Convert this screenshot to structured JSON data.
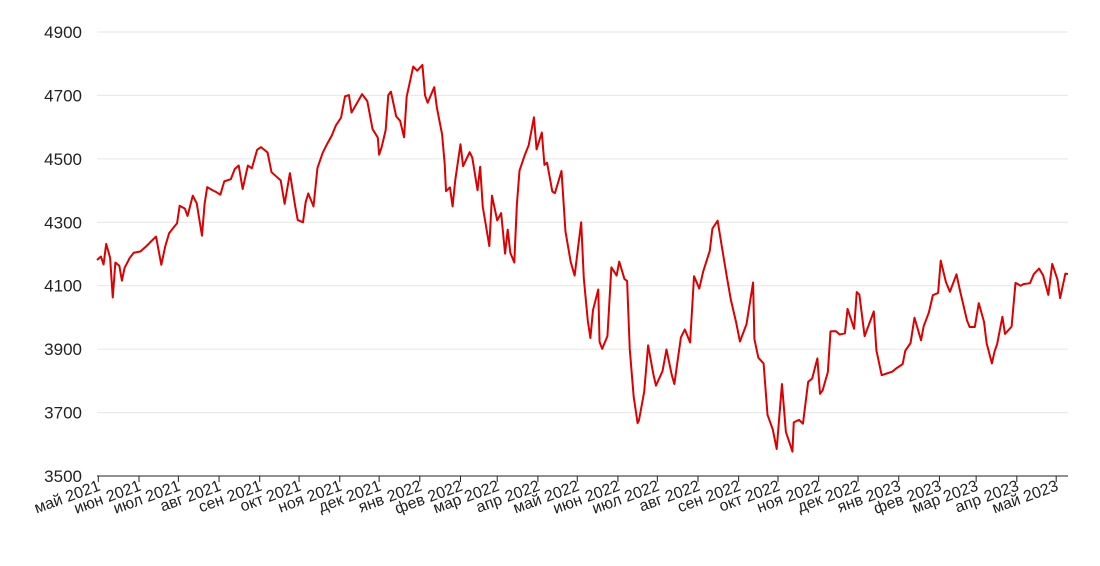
{
  "chart_data": {
    "type": "line",
    "title": "",
    "xlabel": "",
    "ylabel": "",
    "ylim": [
      3500,
      4900
    ],
    "yticks": [
      3500,
      3700,
      3900,
      4100,
      4300,
      4500,
      4700,
      4900
    ],
    "grid": true,
    "line_color": "#dd0000",
    "xticks": [
      {
        "date": "2021-05-01",
        "label": "май 2021"
      },
      {
        "date": "2021-06-01",
        "label": "июн 2021"
      },
      {
        "date": "2021-07-01",
        "label": "июл 2021"
      },
      {
        "date": "2021-08-01",
        "label": "авг 2021"
      },
      {
        "date": "2021-09-01",
        "label": "сен 2021"
      },
      {
        "date": "2021-10-01",
        "label": "окт 2021"
      },
      {
        "date": "2021-11-01",
        "label": "ноя 2021"
      },
      {
        "date": "2021-12-01",
        "label": "дек 2021"
      },
      {
        "date": "2022-01-01",
        "label": "янв 2022"
      },
      {
        "date": "2022-02-01",
        "label": "фев 2022"
      },
      {
        "date": "2022-03-01",
        "label": "мар 2022"
      },
      {
        "date": "2022-04-01",
        "label": "апр 2022"
      },
      {
        "date": "2022-05-01",
        "label": "май 2022"
      },
      {
        "date": "2022-06-01",
        "label": "июн 2022"
      },
      {
        "date": "2022-07-01",
        "label": "июл 2022"
      },
      {
        "date": "2022-08-01",
        "label": "авг 2022"
      },
      {
        "date": "2022-09-01",
        "label": "сен 2022"
      },
      {
        "date": "2022-10-01",
        "label": "окт 2022"
      },
      {
        "date": "2022-11-01",
        "label": "ноя 2022"
      },
      {
        "date": "2022-12-01",
        "label": "дек 2022"
      },
      {
        "date": "2023-01-01",
        "label": "янв 2023"
      },
      {
        "date": "2023-02-01",
        "label": "фев 2023"
      },
      {
        "date": "2023-03-01",
        "label": "мар 2023"
      },
      {
        "date": "2023-04-01",
        "label": "апр 2023"
      },
      {
        "date": "2023-05-01",
        "label": "май 2023"
      }
    ],
    "series": [
      {
        "points": [
          [
            "2021-04-30",
            4181
          ],
          [
            "2021-05-03",
            4192
          ],
          [
            "2021-05-05",
            4167
          ],
          [
            "2021-05-07",
            4232
          ],
          [
            "2021-05-10",
            4188
          ],
          [
            "2021-05-12",
            4063
          ],
          [
            "2021-05-14",
            4173
          ],
          [
            "2021-05-17",
            4163
          ],
          [
            "2021-05-19",
            4116
          ],
          [
            "2021-05-21",
            4156
          ],
          [
            "2021-05-25",
            4188
          ],
          [
            "2021-05-28",
            4204
          ],
          [
            "2021-06-02",
            4208
          ],
          [
            "2021-06-07",
            4226
          ],
          [
            "2021-06-10",
            4239
          ],
          [
            "2021-06-14",
            4255
          ],
          [
            "2021-06-18",
            4166
          ],
          [
            "2021-06-21",
            4224
          ],
          [
            "2021-06-24",
            4266
          ],
          [
            "2021-06-30",
            4297
          ],
          [
            "2021-07-02",
            4352
          ],
          [
            "2021-07-06",
            4343
          ],
          [
            "2021-07-08",
            4320
          ],
          [
            "2021-07-12",
            4384
          ],
          [
            "2021-07-15",
            4360
          ],
          [
            "2021-07-19",
            4258
          ],
          [
            "2021-07-21",
            4358
          ],
          [
            "2021-07-23",
            4411
          ],
          [
            "2021-07-27",
            4401
          ],
          [
            "2021-07-30",
            4395
          ],
          [
            "2021-08-02",
            4387
          ],
          [
            "2021-08-05",
            4429
          ],
          [
            "2021-08-10",
            4436
          ],
          [
            "2021-08-13",
            4468
          ],
          [
            "2021-08-16",
            4479
          ],
          [
            "2021-08-19",
            4405
          ],
          [
            "2021-08-23",
            4479
          ],
          [
            "2021-08-26",
            4470
          ],
          [
            "2021-08-30",
            4528
          ],
          [
            "2021-09-02",
            4537
          ],
          [
            "2021-09-07",
            4520
          ],
          [
            "2021-09-10",
            4458
          ],
          [
            "2021-09-14",
            4443
          ],
          [
            "2021-09-17",
            4432
          ],
          [
            "2021-09-20",
            4358
          ],
          [
            "2021-09-24",
            4455
          ],
          [
            "2021-09-28",
            4352
          ],
          [
            "2021-09-30",
            4307
          ],
          [
            "2021-10-04",
            4300
          ],
          [
            "2021-10-06",
            4363
          ],
          [
            "2021-10-08",
            4391
          ],
          [
            "2021-10-12",
            4350
          ],
          [
            "2021-10-15",
            4471
          ],
          [
            "2021-10-19",
            4519
          ],
          [
            "2021-10-22",
            4544
          ],
          [
            "2021-10-26",
            4574
          ],
          [
            "2021-10-29",
            4605
          ],
          [
            "2021-11-02",
            4630
          ],
          [
            "2021-11-05",
            4697
          ],
          [
            "2021-11-08",
            4701
          ],
          [
            "2021-11-10",
            4646
          ],
          [
            "2021-11-15",
            4682
          ],
          [
            "2021-11-18",
            4704
          ],
          [
            "2021-11-22",
            4682
          ],
          [
            "2021-11-26",
            4594
          ],
          [
            "2021-11-30",
            4567
          ],
          [
            "2021-12-01",
            4513
          ],
          [
            "2021-12-03",
            4538
          ],
          [
            "2021-12-06",
            4591
          ],
          [
            "2021-12-08",
            4701
          ],
          [
            "2021-12-10",
            4712
          ],
          [
            "2021-12-14",
            4634
          ],
          [
            "2021-12-17",
            4620
          ],
          [
            "2021-12-20",
            4568
          ],
          [
            "2021-12-22",
            4696
          ],
          [
            "2021-12-27",
            4791
          ],
          [
            "2021-12-30",
            4778
          ],
          [
            "2022-01-03",
            4796
          ],
          [
            "2022-01-05",
            4700
          ],
          [
            "2022-01-07",
            4677
          ],
          [
            "2022-01-12",
            4726
          ],
          [
            "2022-01-14",
            4662
          ],
          [
            "2022-01-18",
            4577
          ],
          [
            "2022-01-20",
            4483
          ],
          [
            "2022-01-21",
            4398
          ],
          [
            "2022-01-24",
            4410
          ],
          [
            "2022-01-26",
            4350
          ],
          [
            "2022-01-28",
            4432
          ],
          [
            "2022-02-01",
            4546
          ],
          [
            "2022-02-03",
            4477
          ],
          [
            "2022-02-08",
            4521
          ],
          [
            "2022-02-10",
            4504
          ],
          [
            "2022-02-14",
            4401
          ],
          [
            "2022-02-16",
            4475
          ],
          [
            "2022-02-18",
            4349
          ],
          [
            "2022-02-23",
            4225
          ],
          [
            "2022-02-25",
            4384
          ],
          [
            "2022-03-01",
            4306
          ],
          [
            "2022-03-04",
            4329
          ],
          [
            "2022-03-07",
            4201
          ],
          [
            "2022-03-09",
            4277
          ],
          [
            "2022-03-11",
            4204
          ],
          [
            "2022-03-14",
            4173
          ],
          [
            "2022-03-16",
            4357
          ],
          [
            "2022-03-18",
            4463
          ],
          [
            "2022-03-22",
            4512
          ],
          [
            "2022-03-25",
            4543
          ],
          [
            "2022-03-29",
            4631
          ],
          [
            "2022-03-31",
            4530
          ],
          [
            "2022-04-04",
            4583
          ],
          [
            "2022-04-06",
            4481
          ],
          [
            "2022-04-08",
            4488
          ],
          [
            "2022-04-12",
            4397
          ],
          [
            "2022-04-14",
            4392
          ],
          [
            "2022-04-19",
            4462
          ],
          [
            "2022-04-22",
            4272
          ],
          [
            "2022-04-26",
            4175
          ],
          [
            "2022-04-29",
            4132
          ],
          [
            "2022-05-04",
            4300
          ],
          [
            "2022-05-06",
            4123
          ],
          [
            "2022-05-09",
            3991
          ],
          [
            "2022-05-11",
            3935
          ],
          [
            "2022-05-13",
            4023
          ],
          [
            "2022-05-17",
            4088
          ],
          [
            "2022-05-18",
            3923
          ],
          [
            "2022-05-20",
            3901
          ],
          [
            "2022-05-24",
            3941
          ],
          [
            "2022-05-27",
            4158
          ],
          [
            "2022-05-31",
            4132
          ],
          [
            "2022-06-02",
            4176
          ],
          [
            "2022-06-06",
            4121
          ],
          [
            "2022-06-08",
            4115
          ],
          [
            "2022-06-10",
            3901
          ],
          [
            "2022-06-13",
            3750
          ],
          [
            "2022-06-16",
            3667
          ],
          [
            "2022-06-17",
            3675
          ],
          [
            "2022-06-21",
            3765
          ],
          [
            "2022-06-24",
            3912
          ],
          [
            "2022-06-28",
            3821
          ],
          [
            "2022-06-30",
            3785
          ],
          [
            "2022-07-05",
            3831
          ],
          [
            "2022-07-08",
            3899
          ],
          [
            "2022-07-12",
            3819
          ],
          [
            "2022-07-14",
            3790
          ],
          [
            "2022-07-19",
            3937
          ],
          [
            "2022-07-22",
            3962
          ],
          [
            "2022-07-26",
            3921
          ],
          [
            "2022-07-29",
            4130
          ],
          [
            "2022-08-02",
            4091
          ],
          [
            "2022-08-05",
            4145
          ],
          [
            "2022-08-10",
            4210
          ],
          [
            "2022-08-12",
            4280
          ],
          [
            "2022-08-16",
            4305
          ],
          [
            "2022-08-19",
            4228
          ],
          [
            "2022-08-23",
            4128
          ],
          [
            "2022-08-26",
            4057
          ],
          [
            "2022-08-30",
            3986
          ],
          [
            "2022-09-02",
            3924
          ],
          [
            "2022-09-07",
            3979
          ],
          [
            "2022-09-12",
            4110
          ],
          [
            "2022-09-13",
            3932
          ],
          [
            "2022-09-16",
            3873
          ],
          [
            "2022-09-20",
            3855
          ],
          [
            "2022-09-23",
            3693
          ],
          [
            "2022-09-27",
            3647
          ],
          [
            "2022-09-30",
            3585
          ],
          [
            "2022-10-04",
            3790
          ],
          [
            "2022-10-07",
            3639
          ],
          [
            "2022-10-12",
            3577
          ],
          [
            "2022-10-13",
            3669
          ],
          [
            "2022-10-17",
            3677
          ],
          [
            "2022-10-20",
            3665
          ],
          [
            "2022-10-24",
            3797
          ],
          [
            "2022-10-27",
            3807
          ],
          [
            "2022-10-31",
            3871
          ],
          [
            "2022-11-02",
            3759
          ],
          [
            "2022-11-04",
            3770
          ],
          [
            "2022-11-08",
            3828
          ],
          [
            "2022-11-10",
            3956
          ],
          [
            "2022-11-14",
            3957
          ],
          [
            "2022-11-17",
            3946
          ],
          [
            "2022-11-21",
            3950
          ],
          [
            "2022-11-23",
            4027
          ],
          [
            "2022-11-28",
            3964
          ],
          [
            "2022-11-30",
            4080
          ],
          [
            "2022-12-02",
            4072
          ],
          [
            "2022-12-06",
            3941
          ],
          [
            "2022-12-08",
            3963
          ],
          [
            "2022-12-13",
            4019
          ],
          [
            "2022-12-15",
            3896
          ],
          [
            "2022-12-19",
            3818
          ],
          [
            "2022-12-22",
            3822
          ],
          [
            "2022-12-27",
            3829
          ],
          [
            "2022-12-30",
            3839
          ],
          [
            "2023-01-04",
            3853
          ],
          [
            "2023-01-06",
            3895
          ],
          [
            "2023-01-10",
            3919
          ],
          [
            "2023-01-13",
            3999
          ],
          [
            "2023-01-18",
            3928
          ],
          [
            "2023-01-20",
            3972
          ],
          [
            "2023-01-24",
            4016
          ],
          [
            "2023-01-27",
            4070
          ],
          [
            "2023-01-31",
            4077
          ],
          [
            "2023-02-02",
            4179
          ],
          [
            "2023-02-06",
            4111
          ],
          [
            "2023-02-09",
            4081
          ],
          [
            "2023-02-14",
            4136
          ],
          [
            "2023-02-17",
            4079
          ],
          [
            "2023-02-22",
            3991
          ],
          [
            "2023-02-24",
            3970
          ],
          [
            "2023-02-28",
            3970
          ],
          [
            "2023-03-03",
            4045
          ],
          [
            "2023-03-07",
            3986
          ],
          [
            "2023-03-09",
            3918
          ],
          [
            "2023-03-13",
            3855
          ],
          [
            "2023-03-15",
            3892
          ],
          [
            "2023-03-17",
            3916
          ],
          [
            "2023-03-21",
            4002
          ],
          [
            "2023-03-23",
            3948
          ],
          [
            "2023-03-28",
            3971
          ],
          [
            "2023-03-31",
            4109
          ],
          [
            "2023-04-04",
            4100
          ],
          [
            "2023-04-06",
            4105
          ],
          [
            "2023-04-11",
            4108
          ],
          [
            "2023-04-14",
            4137
          ],
          [
            "2023-04-18",
            4154
          ],
          [
            "2023-04-21",
            4133
          ],
          [
            "2023-04-25",
            4071
          ],
          [
            "2023-04-28",
            4169
          ],
          [
            "2023-05-02",
            4119
          ],
          [
            "2023-05-04",
            4061
          ],
          [
            "2023-05-08",
            4138
          ],
          [
            "2023-05-10",
            4137
          ]
        ]
      }
    ]
  }
}
